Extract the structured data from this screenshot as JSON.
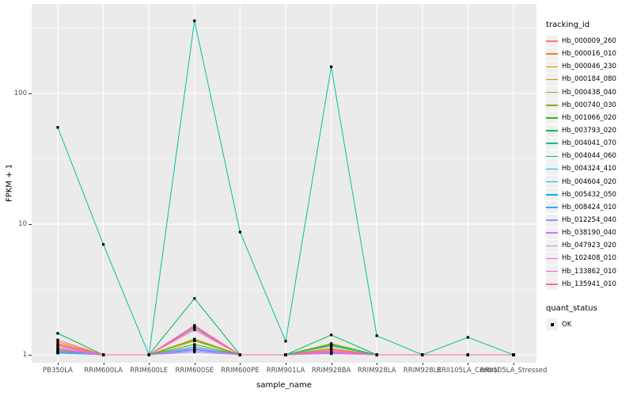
{
  "figure": {
    "panel_bg": "#EBEBEB",
    "grid_color": "#FFFFFF",
    "axis_text_color": "#4D4D4D",
    "point_color": "#000000"
  },
  "legend": {
    "tracking_title": "tracking_id",
    "quant_title": "quant_status",
    "quant_ok_label": "OK"
  },
  "chart_data": {
    "type": "line",
    "title": "",
    "xlabel": "sample_name",
    "ylabel": "FPKM + 1",
    "y_scale": "log10",
    "y_ticks": [
      1,
      10,
      100
    ],
    "ylim": [
      0.87,
      490
    ],
    "grid": true,
    "legend_position": "right",
    "marker": "black-square",
    "categories": [
      "PB350LA",
      "RRIM600LA",
      "RRIM600LE",
      "RRIM600SE",
      "RRIM600PE",
      "RRIM901LA",
      "RRIM928BA",
      "RRIM928LA",
      "RRIM928LE",
      "RRII105LA_Control",
      "RRII105LA_Stressed"
    ],
    "series": [
      {
        "name": "Hb_000009_260",
        "color": "#F8766D",
        "values": [
          1.2,
          1.0,
          1.0,
          1.68,
          1.0,
          1.0,
          1.18,
          1.0,
          1.0,
          1.0,
          1.0
        ]
      },
      {
        "name": "Hb_000016_010",
        "color": "#EA8331",
        "values": [
          1.26,
          1.0,
          1.0,
          1.3,
          1.0,
          1.0,
          1.1,
          1.0,
          1.0,
          1.0,
          1.0
        ]
      },
      {
        "name": "Hb_000046_230",
        "color": "#D89000",
        "values": [
          1.22,
          1.0,
          1.0,
          1.28,
          1.0,
          1.0,
          1.12,
          1.0,
          1.0,
          1.0,
          1.0
        ]
      },
      {
        "name": "Hb_000184_080",
        "color": "#C09B00",
        "values": [
          1.1,
          1.0,
          1.0,
          1.3,
          1.0,
          1.0,
          1.2,
          1.0,
          1.0,
          1.0,
          1.0
        ]
      },
      {
        "name": "Hb_000438_040",
        "color": "#A3A500",
        "values": [
          1.08,
          1.0,
          1.0,
          1.28,
          1.0,
          1.0,
          1.2,
          1.0,
          1.0,
          1.0,
          1.0
        ]
      },
      {
        "name": "Hb_000740_030",
        "color": "#7CAE00",
        "values": [
          1.06,
          1.0,
          1.0,
          1.32,
          1.0,
          1.0,
          1.22,
          1.0,
          1.0,
          1.0,
          1.0
        ]
      },
      {
        "name": "Hb_001066_020",
        "color": "#39B600",
        "values": [
          1.05,
          1.0,
          1.0,
          1.2,
          1.0,
          1.0,
          1.06,
          1.0,
          1.0,
          1.0,
          1.0
        ]
      },
      {
        "name": "Hb_003793_020",
        "color": "#00BB4E",
        "values": [
          1.46,
          1.0,
          1.0,
          2.7,
          1.0,
          1.0,
          1.42,
          1.0,
          1.0,
          1.0,
          1.0
        ]
      },
      {
        "name": "Hb_004041_070",
        "color": "#00BF7D",
        "values": [
          1.1,
          1.0,
          1.0,
          1.62,
          1.0,
          1.0,
          1.18,
          1.0,
          1.0,
          1.0,
          1.0
        ]
      },
      {
        "name": "Hb_004044_060",
        "color": "#00C1A3",
        "values": [
          55,
          7,
          1.0,
          360,
          8.7,
          1.27,
          160,
          1.4,
          1.0,
          1.36,
          1.0
        ]
      },
      {
        "name": "Hb_004324_410",
        "color": "#00BFC4",
        "values": [
          1.06,
          1.0,
          1.0,
          1.6,
          1.0,
          1.0,
          1.17,
          1.0,
          1.0,
          1.0,
          1.0
        ]
      },
      {
        "name": "Hb_004604_020",
        "color": "#00BAE0",
        "values": [
          1.05,
          1.0,
          1.0,
          1.15,
          1.0,
          1.0,
          1.05,
          1.0,
          1.0,
          1.0,
          1.0
        ]
      },
      {
        "name": "Hb_005432_050",
        "color": "#00B0F6",
        "values": [
          1.04,
          1.0,
          1.0,
          1.1,
          1.0,
          1.0,
          1.04,
          1.0,
          1.0,
          1.0,
          1.0
        ]
      },
      {
        "name": "Hb_008424_010",
        "color": "#35A2FF",
        "values": [
          1.03,
          1.0,
          1.0,
          1.08,
          1.0,
          1.0,
          1.03,
          1.0,
          1.0,
          1.0,
          1.0
        ]
      },
      {
        "name": "Hb_012254_040",
        "color": "#9590FF",
        "values": [
          1.05,
          1.0,
          1.0,
          1.05,
          1.0,
          1.0,
          1.02,
          1.0,
          1.0,
          1.0,
          1.0
        ]
      },
      {
        "name": "Hb_038190_040",
        "color": "#C77CFF",
        "values": [
          1.1,
          1.0,
          1.0,
          1.08,
          1.0,
          1.0,
          1.03,
          1.0,
          1.0,
          1.0,
          1.0
        ]
      },
      {
        "name": "Hb_047923_020",
        "color": "#E76BF3",
        "values": [
          1.12,
          1.0,
          1.0,
          1.12,
          1.0,
          1.0,
          1.05,
          1.0,
          1.0,
          1.0,
          1.0
        ]
      },
      {
        "name": "Hb_102408_010",
        "color": "#FA62DB",
        "values": [
          1.15,
          1.0,
          1.0,
          1.66,
          1.0,
          1.0,
          1.08,
          1.0,
          1.0,
          1.0,
          1.0
        ]
      },
      {
        "name": "Hb_133862_010",
        "color": "#FF62BC",
        "values": [
          1.18,
          1.0,
          1.0,
          1.6,
          1.0,
          1.0,
          1.06,
          1.0,
          1.0,
          1.0,
          1.0
        ]
      },
      {
        "name": "Hb_135941_010",
        "color": "#FF6A98",
        "values": [
          1.3,
          1.0,
          1.0,
          1.55,
          1.0,
          1.0,
          1.05,
          1.0,
          1.0,
          1.0,
          1.0
        ]
      }
    ]
  }
}
